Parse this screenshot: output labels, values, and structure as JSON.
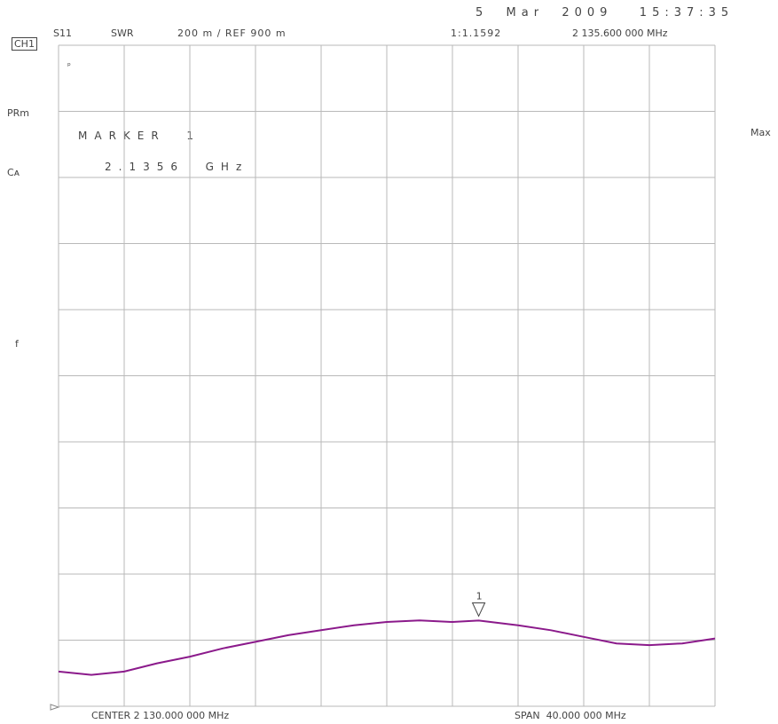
{
  "header": {
    "timestamp": "5  Mar  2009   15:37:35",
    "channel": "CH1",
    "param": "S11",
    "format": "SWR",
    "scale": "200 m / REF 900 m",
    "marker_value": "1:1.1592",
    "marker_freq": "2 135.600 000 MHz"
  },
  "left_labels": {
    "top_tiny": "ᵖ",
    "prm": "PRm",
    "cor": "Cᴀ",
    "f": "f"
  },
  "right_labels": {
    "max": "Max"
  },
  "marker_box": {
    "title": "MARKER  1",
    "freq": "2.1356  GHz"
  },
  "footer": {
    "center": "CENTER 2 130.000 000 MHz",
    "span": "SPAN  40.000 000 MHz"
  },
  "colors": {
    "trace": "#8b1a8b",
    "grid": "#b9b9b9",
    "marker": "#444444"
  },
  "chart_data": {
    "type": "line",
    "xlabel": "",
    "ylabel": "",
    "xlim": [
      2110,
      2150
    ],
    "ylim": [
      0.9,
      2.9
    ],
    "grid": true,
    "x_divisions": 10,
    "y_divisions": 10,
    "series": [
      {
        "x": [
          2110,
          2112,
          2114,
          2116,
          2118,
          2120,
          2122,
          2124,
          2126,
          2128,
          2130,
          2132,
          2134,
          2135.6,
          2138,
          2140,
          2142,
          2144,
          2146,
          2148,
          2150
        ],
        "values": [
          1.005,
          0.995,
          1.005,
          1.03,
          1.05,
          1.075,
          1.095,
          1.115,
          1.13,
          1.145,
          1.155,
          1.16,
          1.155,
          1.1592,
          1.145,
          1.13,
          1.11,
          1.09,
          1.085,
          1.09,
          1.105
        ]
      }
    ],
    "markers": [
      {
        "label": "1",
        "x": 2135.6,
        "y": 1.1592
      }
    ]
  }
}
